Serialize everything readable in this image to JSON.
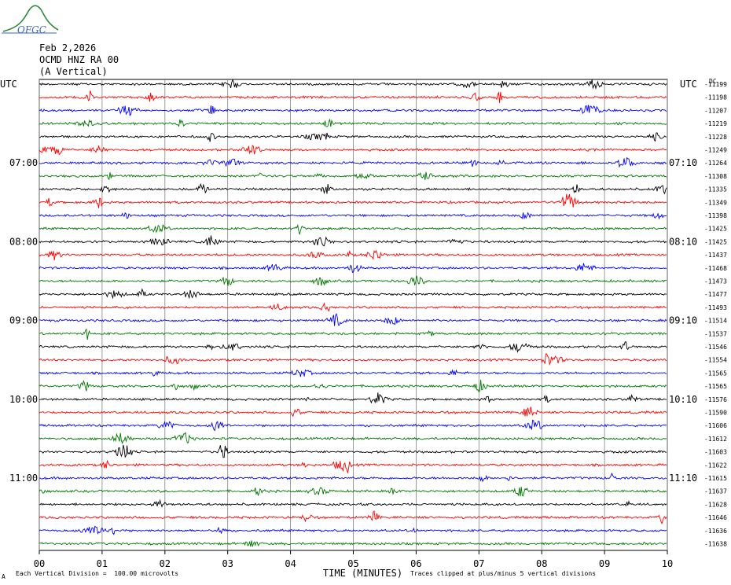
{
  "header": {
    "date": "Feb 2,2026",
    "station": "OCMD HNZ RA 00",
    "component": "(A Vertical)",
    "logo_text": "OFGC"
  },
  "axis": {
    "left_label": "UTC",
    "right_label": "UTC",
    "dc_label": "DC",
    "x_title": "TIME (MINUTES)"
  },
  "footer": {
    "scale_note": "Each Vertical Division =  100.00 microvolts",
    "clip_note": "Traces clipped at plus/minus 5 vertical divisions",
    "corner_mark": "A"
  },
  "colors": {
    "trace_cycle": [
      "#000000",
      "#ff0000",
      "#0000ff",
      "#007700"
    ],
    "grid": "#808080",
    "logo": "#2a8a3a"
  },
  "chart_data": {
    "type": "line",
    "title": "",
    "xlabel": "TIME (MINUTES)",
    "ylabel": "UTC",
    "xlim": [
      0,
      10
    ],
    "x_ticks": [
      "00",
      "01",
      "02",
      "03",
      "04",
      "05",
      "06",
      "07",
      "08",
      "09",
      "10"
    ],
    "grid": "vertical lines at each minute",
    "traces_per_hour": 6,
    "trace_count": 36,
    "left_hour_labels": [
      {
        "trace": 6,
        "label": "07:00"
      },
      {
        "trace": 12,
        "label": "08:00"
      },
      {
        "trace": 18,
        "label": "09:00"
      },
      {
        "trace": 24,
        "label": "10:00"
      },
      {
        "trace": 30,
        "label": "11:00"
      }
    ],
    "right_hour_labels": [
      {
        "trace": 6,
        "label": "07:10"
      },
      {
        "trace": 12,
        "label": "08:10"
      },
      {
        "trace": 18,
        "label": "09:10"
      },
      {
        "trace": 24,
        "label": "10:10"
      },
      {
        "trace": 30,
        "label": "11:10"
      }
    ],
    "dc_offsets": [
      "-11199",
      "-11198",
      "-11207",
      "-11219",
      "-11228",
      "-11249",
      "-11264",
      "-11308",
      "-11335",
      "-11349",
      "-11398",
      "-11425",
      "-11425",
      "-11437",
      "-11468",
      "-11473",
      "-11477",
      "-11493",
      "-11514",
      "-11537",
      "-11546",
      "-11554",
      "-11565",
      "-11565",
      "-11576",
      "-11590",
      "-11606",
      "-11612",
      "-11603",
      "-11622",
      "-11615",
      "-11637",
      "-11628",
      "-11646",
      "-11636",
      "-11638"
    ]
  }
}
